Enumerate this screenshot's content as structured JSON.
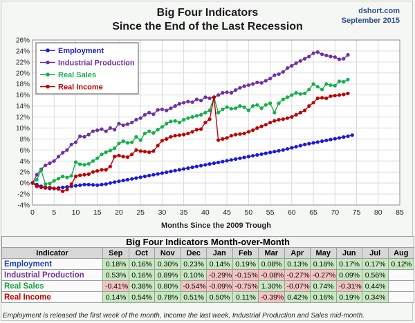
{
  "header": {
    "title_line1": "Big Four Indicators",
    "title_line2": "Since the End of the Last Recession",
    "brand": "dshort.com",
    "date": "September 2015"
  },
  "chart_data": {
    "type": "line",
    "xlabel": "Months Since the 2009 Trough",
    "ylabel": "",
    "xlim": [
      0,
      85
    ],
    "ylim": [
      -4,
      26
    ],
    "xticks": [
      "0",
      "5",
      "10",
      "15",
      "20",
      "25",
      "30",
      "35",
      "40",
      "45",
      "50",
      "55",
      "60",
      "65",
      "70",
      "75",
      "80",
      "85"
    ],
    "yticks": [
      "-4%",
      "-2%",
      "0%",
      "2%",
      "4%",
      "6%",
      "8%",
      "10%",
      "12%",
      "14%",
      "16%",
      "18%",
      "20%",
      "22%",
      "24%",
      "26%"
    ],
    "grid": true,
    "legend_position": "top-left",
    "series": [
      {
        "name": "Employment",
        "color": "#1a1adc",
        "x": [
          0,
          1,
          2,
          3,
          4,
          5,
          6,
          7,
          8,
          9,
          10,
          11,
          12,
          13,
          14,
          15,
          16,
          17,
          18,
          19,
          20,
          21,
          22,
          23,
          24,
          25,
          26,
          27,
          28,
          29,
          30,
          31,
          32,
          33,
          34,
          35,
          36,
          37,
          38,
          39,
          40,
          41,
          42,
          43,
          44,
          45,
          46,
          47,
          48,
          49,
          50,
          51,
          52,
          53,
          54,
          55,
          56,
          57,
          58,
          59,
          60,
          61,
          62,
          63,
          64,
          65,
          66,
          67,
          68,
          69,
          70,
          71,
          72,
          73,
          74
        ],
        "y": [
          0,
          -0.3,
          -0.6,
          -0.8,
          -1.0,
          -1.0,
          -0.9,
          -0.8,
          -0.7,
          -0.6,
          -0.5,
          -0.4,
          -0.3,
          -0.3,
          -0.35,
          -0.4,
          -0.3,
          -0.2,
          0.0,
          0.15,
          0.3,
          0.45,
          0.6,
          0.75,
          0.9,
          1.05,
          1.2,
          1.35,
          1.5,
          1.65,
          1.8,
          1.95,
          2.1,
          2.25,
          2.4,
          2.55,
          2.7,
          2.85,
          3.0,
          3.15,
          3.3,
          3.45,
          3.6,
          3.75,
          3.9,
          4.05,
          4.2,
          4.35,
          4.5,
          4.65,
          4.8,
          4.95,
          5.1,
          5.25,
          5.4,
          5.55,
          5.7,
          5.85,
          6.0,
          6.2,
          6.4,
          6.6,
          6.8,
          7.0,
          7.15,
          7.3,
          7.45,
          7.6,
          7.75,
          7.9,
          8.05,
          8.2,
          8.35,
          8.5,
          8.7
        ]
      },
      {
        "name": "Industrial Production",
        "color": "#7030a0",
        "x": [
          0,
          1,
          2,
          3,
          4,
          5,
          6,
          7,
          8,
          9,
          10,
          11,
          12,
          13,
          14,
          15,
          16,
          17,
          18,
          19,
          20,
          21,
          22,
          23,
          24,
          25,
          26,
          27,
          28,
          29,
          30,
          31,
          32,
          33,
          34,
          35,
          36,
          37,
          38,
          39,
          40,
          41,
          42,
          43,
          44,
          45,
          46,
          47,
          48,
          49,
          50,
          51,
          52,
          53,
          54,
          55,
          56,
          57,
          58,
          59,
          60,
          61,
          62,
          63,
          64,
          65,
          66,
          67,
          68,
          69,
          70,
          71,
          72,
          73
        ],
        "y": [
          0,
          1.5,
          2.5,
          3.2,
          3.6,
          4.0,
          4.8,
          5.5,
          6.0,
          7.0,
          7.4,
          8.5,
          8.4,
          8.8,
          9.4,
          9.6,
          9.8,
          9.4,
          10.0,
          9.7,
          10.8,
          10.5,
          10.7,
          11.0,
          11.5,
          11.8,
          12.4,
          12.8,
          12.5,
          13.3,
          13.4,
          13.2,
          13.6,
          14.0,
          14.4,
          14.6,
          14.8,
          14.7,
          15.2,
          15.0,
          15.6,
          15.4,
          15.6,
          16.0,
          16.4,
          16.5,
          16.4,
          16.9,
          17.3,
          17.6,
          17.8,
          18.0,
          18.3,
          18.2,
          18.6,
          19.0,
          19.6,
          19.8,
          20.2,
          20.9,
          21.3,
          21.8,
          22.2,
          22.6,
          23.0,
          23.6,
          23.8,
          23.4,
          23.2,
          23.0,
          22.9,
          22.5,
          22.6,
          23.3
        ]
      },
      {
        "name": "Real Sales",
        "color": "#14b04a",
        "x": [
          0,
          1,
          2,
          3,
          4,
          5,
          6,
          7,
          8,
          9,
          10,
          11,
          12,
          13,
          14,
          15,
          16,
          17,
          18,
          19,
          20,
          21,
          22,
          23,
          24,
          25,
          26,
          27,
          28,
          29,
          30,
          31,
          32,
          33,
          34,
          35,
          36,
          37,
          38,
          39,
          40,
          41,
          42,
          43,
          44,
          45,
          46,
          47,
          48,
          49,
          50,
          51,
          52,
          53,
          54,
          55,
          56,
          57,
          58,
          59,
          60,
          61,
          62,
          63,
          64,
          65,
          66,
          67,
          68,
          69,
          70,
          71,
          72,
          73
        ],
        "y": [
          0,
          0.6,
          2.3,
          -0.2,
          -0.1,
          0.4,
          0.8,
          1.2,
          1.0,
          1.3,
          3.8,
          3.4,
          3.3,
          3.5,
          4.0,
          4.5,
          5.2,
          5.6,
          5.9,
          6.3,
          7.2,
          7.6,
          7.3,
          7.4,
          8.4,
          7.8,
          9.0,
          9.4,
          9.1,
          9.7,
          10.2,
          10.8,
          11.2,
          11.3,
          11.0,
          11.5,
          11.8,
          12.0,
          12.2,
          12.4,
          12.8,
          13.2,
          15.6,
          12.8,
          13.4,
          13.8,
          13.5,
          13.6,
          14.0,
          13.8,
          13.2,
          14.0,
          14.2,
          13.6,
          14.2,
          14.5,
          12.8,
          14.5,
          15.2,
          15.6,
          16.0,
          16.4,
          16.2,
          16.3,
          17.0,
          18.0,
          17.5,
          17.0,
          18.0,
          17.8,
          17.7,
          18.5,
          18.4,
          18.8
        ]
      },
      {
        "name": "Real Income",
        "color": "#c00000",
        "x": [
          0,
          1,
          2,
          3,
          4,
          5,
          6,
          7,
          8,
          9,
          10,
          11,
          12,
          13,
          14,
          15,
          16,
          17,
          18,
          19,
          20,
          21,
          22,
          23,
          24,
          25,
          26,
          27,
          28,
          29,
          30,
          31,
          32,
          33,
          34,
          35,
          36,
          37,
          38,
          39,
          40,
          41,
          42,
          43,
          44,
          45,
          46,
          47,
          48,
          49,
          50,
          51,
          52,
          53,
          54,
          55,
          56,
          57,
          58,
          59,
          60,
          61,
          62,
          63,
          64,
          65,
          66,
          67,
          68,
          69,
          70,
          71,
          72,
          73
        ],
        "y": [
          0,
          -0.6,
          -0.8,
          -0.9,
          -0.8,
          -1.0,
          -1.1,
          -1.5,
          -1.2,
          -0.2,
          1.2,
          1.4,
          1.5,
          1.6,
          2.0,
          2.2,
          2.4,
          2.4,
          3.0,
          4.8,
          5.0,
          4.8,
          4.7,
          5.2,
          6.0,
          5.8,
          5.7,
          5.6,
          5.8,
          6.8,
          7.7,
          8.0,
          8.4,
          8.6,
          8.7,
          8.8,
          9.0,
          9.3,
          9.7,
          9.8,
          11.0,
          11.6,
          15.6,
          7.8,
          8.0,
          8.2,
          8.6,
          8.8,
          8.9,
          9.0,
          9.3,
          9.6,
          10.0,
          10.3,
          10.6,
          11.0,
          11.3,
          11.5,
          11.6,
          11.8,
          12.0,
          12.4,
          12.8,
          13.2,
          14.0,
          14.6,
          15.4,
          15.5,
          15.4,
          15.8,
          15.9,
          16.0,
          16.1,
          16.3
        ]
      }
    ]
  },
  "table": {
    "title": "Big Four Indicators Month-over-Month",
    "header_label": "Indicator",
    "months": [
      "Sep",
      "Oct",
      "Nov",
      "Dec",
      "Jan",
      "Feb",
      "Mar",
      "Apr",
      "May",
      "Jun",
      "Jul",
      "Aug"
    ],
    "rows": [
      {
        "name": "Employment",
        "color": "#1f3fbf",
        "values": [
          "0.18%",
          "0.16%",
          "0.30%",
          "0.23%",
          "0.14%",
          "0.19%",
          "0.08%",
          "0.13%",
          "0.18%",
          "0.17%",
          "0.17%",
          "0.12%"
        ]
      },
      {
        "name": "Industrial Production",
        "color": "#7030a0",
        "values": [
          "0.53%",
          "0.16%",
          "0.89%",
          "0.10%",
          "-0.29%",
          "-0.15%",
          "-0.08%",
          "-0.27%",
          "-0.27%",
          "0.09%",
          "0.56%",
          ""
        ]
      },
      {
        "name": "Real Sales",
        "color": "#14a040",
        "values": [
          "-0.41%",
          "0.38%",
          "0.80%",
          "-0.54%",
          "-0.09%",
          "-0.75%",
          "1.30%",
          "-0.07%",
          "0.74%",
          "-0.31%",
          "0.44%",
          ""
        ]
      },
      {
        "name": "Real Income",
        "color": "#c00000",
        "values": [
          "0.14%",
          "0.54%",
          "0.78%",
          "0.51%",
          "0.50%",
          "0.11%",
          "-0.39%",
          "0.42%",
          "0.16%",
          "0.19%",
          "0.34%",
          ""
        ]
      }
    ]
  },
  "footnote": "Employment is released the first week of the month, Income the last week, Industrial Production and Sales mid-month."
}
